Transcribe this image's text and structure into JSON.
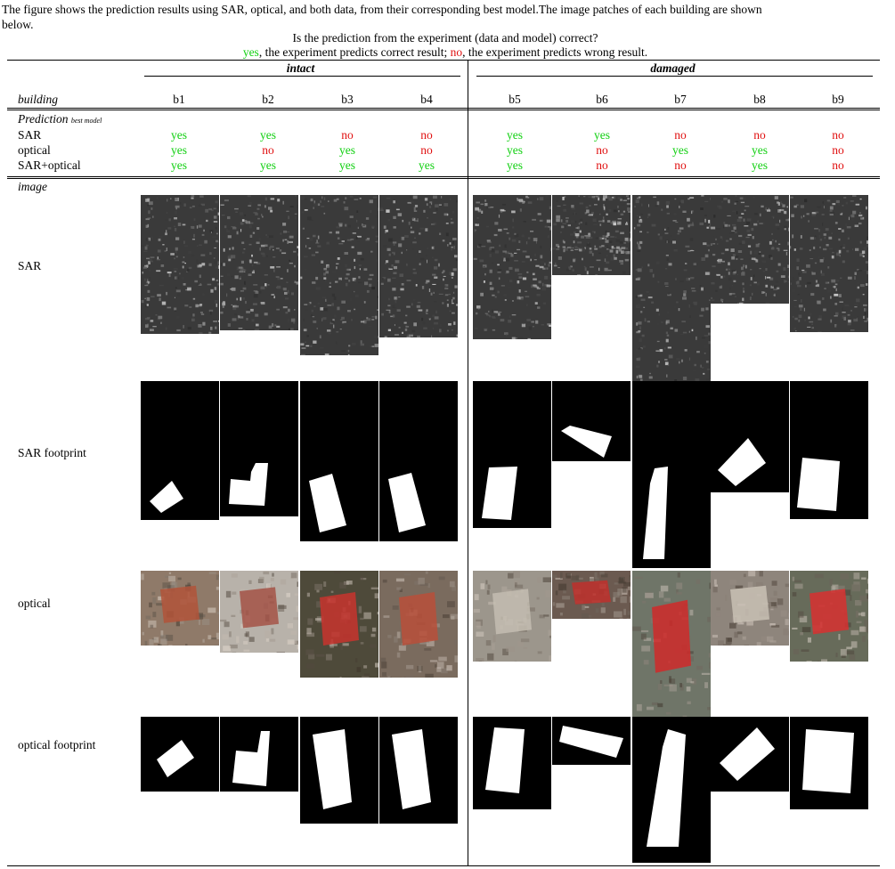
{
  "caption": {
    "line1": "The figure shows the prediction results using SAR, optical, and both data, from their corresponding best model.The image patches of each building are shown",
    "line2": "below."
  },
  "question": {
    "line": "Is the prediction from the experiment (data and model) correct?",
    "yes_word": "yes",
    "yes_text": ", the experiment predicts correct result; ",
    "no_word": "no",
    "no_text": ", the experiment predicts wrong result."
  },
  "groups": {
    "intact": "intact",
    "damaged": "damaged"
  },
  "header": {
    "building": "building",
    "buildings": [
      "b1",
      "b2",
      "b3",
      "b4",
      "b5",
      "b6",
      "b7",
      "b8",
      "b9"
    ]
  },
  "prediction": {
    "title": "Prediction",
    "subtitle": "best model",
    "rows": [
      {
        "label": "SAR",
        "values": [
          "yes",
          "yes",
          "no",
          "no",
          "yes",
          "yes",
          "no",
          "no",
          "no"
        ]
      },
      {
        "label": "optical",
        "values": [
          "yes",
          "no",
          "yes",
          "no",
          "yes",
          "no",
          "yes",
          "yes",
          "no"
        ]
      },
      {
        "label": "SAR+optical",
        "values": [
          "yes",
          "yes",
          "yes",
          "yes",
          "yes",
          "no",
          "no",
          "yes",
          "no"
        ]
      }
    ]
  },
  "image_section": {
    "title": "image",
    "rows": [
      "SAR",
      "SAR footprint",
      "optical",
      "optical footprint"
    ]
  },
  "colors": {
    "yes": "#12d012",
    "no": "#e01010"
  }
}
